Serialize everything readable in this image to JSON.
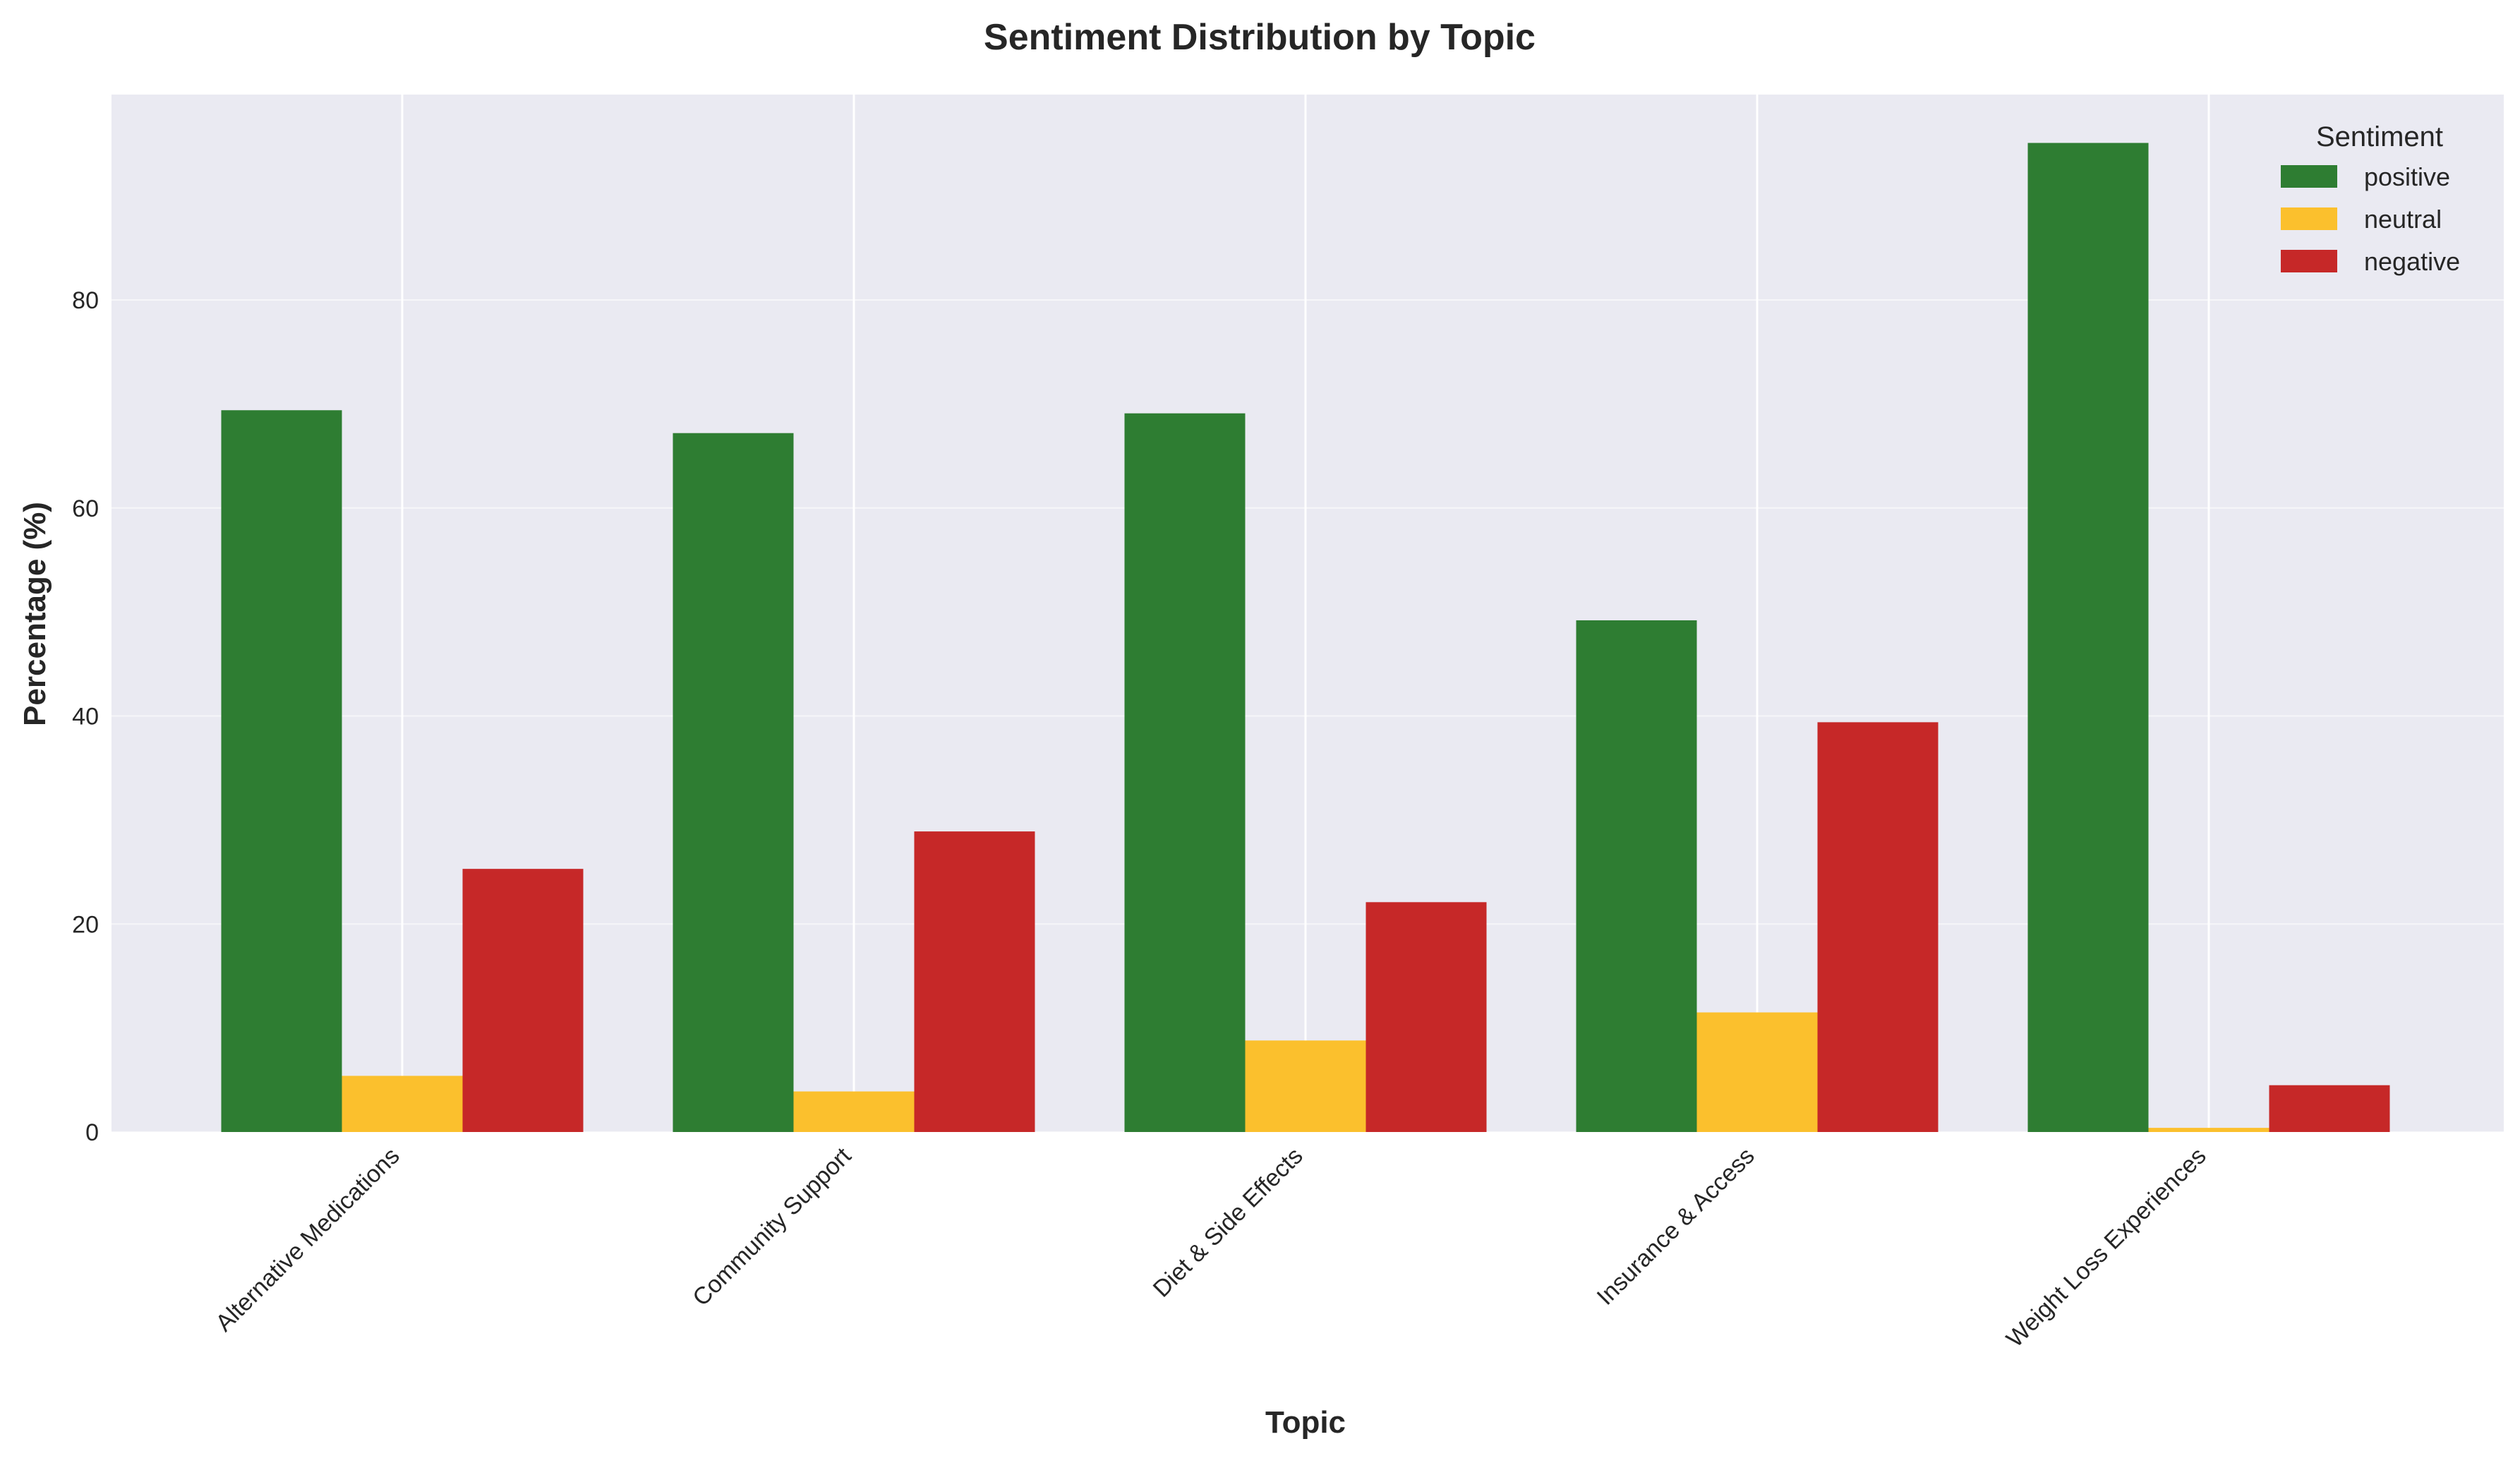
{
  "chart_data": {
    "type": "bar",
    "title": "Sentiment Distribution by Topic",
    "xlabel": "Topic",
    "ylabel": "Percentage (%)",
    "ylim": [
      0,
      99.75
    ],
    "yticks": [
      0,
      20,
      40,
      60,
      80
    ],
    "grid": true,
    "legend": {
      "title": "Sentiment",
      "placement": "top-right"
    },
    "categories": [
      "Alternative Medications",
      "Community Support",
      "Diet & Side Effects",
      "Insurance & Access",
      "Weight Loss Experiences"
    ],
    "series": [
      {
        "name": "positive",
        "color": "#2e7d32",
        "values": [
          69.4,
          67.2,
          69.1,
          49.2,
          95.1
        ]
      },
      {
        "name": "neutral",
        "color": "#fbc02d",
        "values": [
          5.4,
          3.9,
          8.8,
          11.5,
          0.4
        ]
      },
      {
        "name": "negative",
        "color": "#c62828",
        "values": [
          25.3,
          28.9,
          22.1,
          39.4,
          4.5
        ]
      }
    ]
  }
}
